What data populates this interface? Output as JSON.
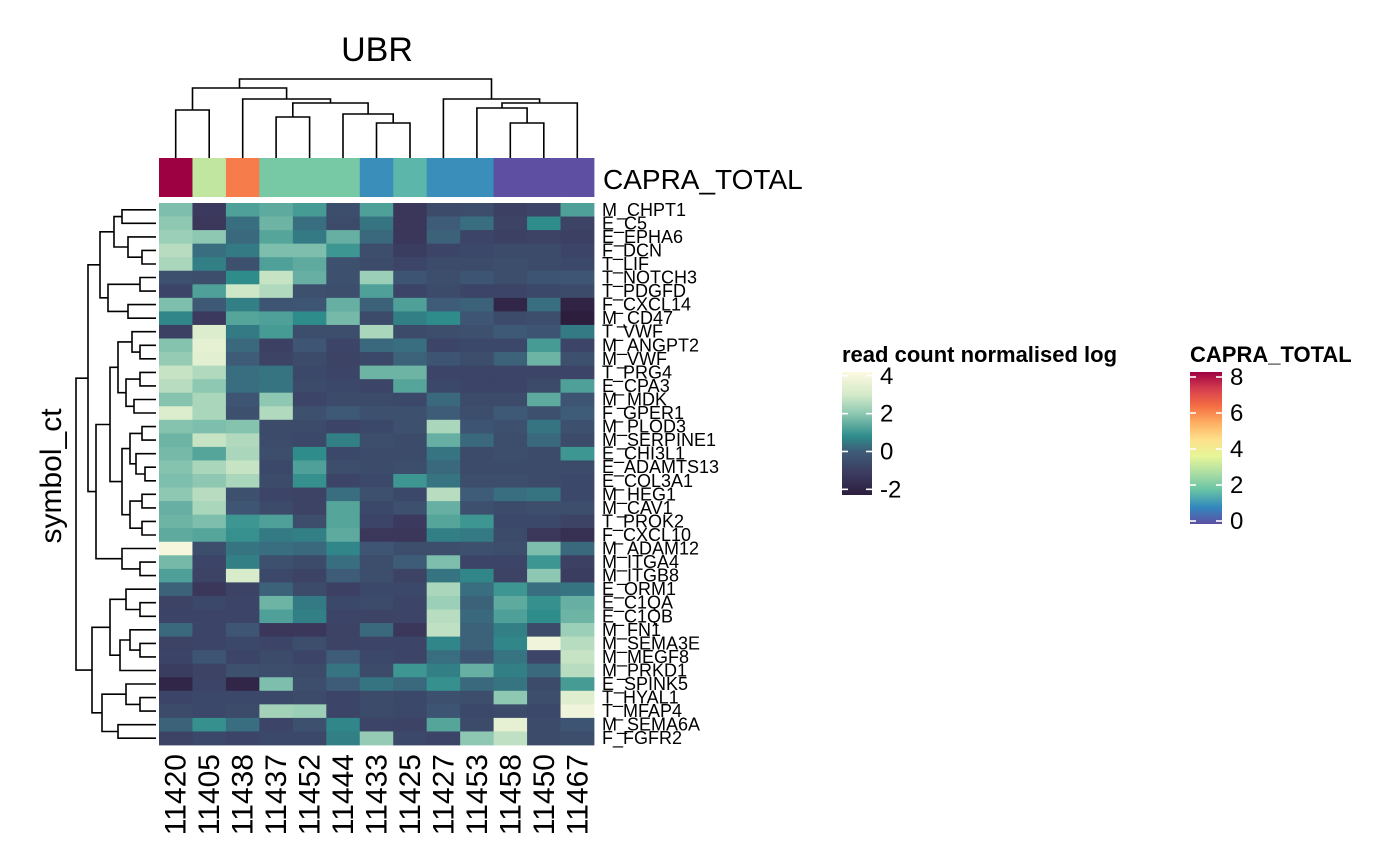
{
  "chart_data": {
    "type": "heatmap",
    "title": "UBR",
    "ylabel": "symbol_ct",
    "columns": [
      "11420",
      "11405",
      "11438",
      "11437",
      "11452",
      "11444",
      "11433",
      "11425",
      "11427",
      "11453",
      "11458",
      "11450",
      "11467"
    ],
    "rows": [
      "M_CHPT1",
      "E_C5",
      "E_EPHA6",
      "F_DCN",
      "T_LIF",
      "T_NOTCH3",
      "T_PDGFD",
      "F_CXCL14",
      "M_CD47",
      "T_VWF",
      "M_ANGPT2",
      "M_VWF",
      "T_PRG4",
      "E_CPA3",
      "M_MDK",
      "F_GPER1",
      "M_PLOD3",
      "M_SERPINE1",
      "E_CHI3L1",
      "E_ADAMTS13",
      "E_COL3A1",
      "M_HEG1",
      "M_CAV1",
      "T_PROK2",
      "F_CXCL10",
      "M_ADAM12",
      "M_ITGA4",
      "M_ITGB8",
      "E_ORM1",
      "E_C1QA",
      "E_C1QB",
      "M_FN1",
      "M_SEMA3E",
      "M_MEGF8",
      "M_PRKD1",
      "E_SPINK5",
      "T_HYAL1",
      "T_MFAP4",
      "M_SEMA6A",
      "F_FGFR2"
    ],
    "values": [
      [
        1.8,
        -1.2,
        1.2,
        1.4,
        1.1,
        -0.5,
        1.2,
        -1.3,
        -0.6,
        -0.5,
        -1.0,
        -0.8,
        1.2
      ],
      [
        2.0,
        -1.3,
        0.3,
        1.6,
        0.3,
        -0.6,
        0.4,
        -1.3,
        0.0,
        0.3,
        -0.9,
        0.8,
        -0.9
      ],
      [
        2.2,
        2.0,
        0.2,
        1.3,
        0.5,
        1.5,
        0.2,
        -1.3,
        0.1,
        -0.8,
        -1.0,
        -0.9,
        -1.0
      ],
      [
        2.6,
        0.3,
        0.5,
        1.8,
        1.8,
        1.0,
        -0.5,
        -1.1,
        -0.8,
        -0.7,
        -0.6,
        -0.6,
        -0.8
      ],
      [
        2.4,
        0.6,
        -0.4,
        1.2,
        1.4,
        -0.4,
        -0.6,
        -0.8,
        -0.6,
        -0.6,
        -0.5,
        -0.6,
        -0.7
      ],
      [
        -0.4,
        -0.5,
        0.8,
        2.8,
        1.5,
        -0.4,
        2.2,
        -0.3,
        -0.5,
        -0.3,
        -0.5,
        -0.3,
        -0.2
      ],
      [
        -0.8,
        1.2,
        2.9,
        2.5,
        -0.4,
        -0.5,
        1.2,
        -0.8,
        -0.6,
        -0.8,
        -0.8,
        -0.7,
        -0.6
      ],
      [
        1.8,
        -0.1,
        0.6,
        -0.3,
        -0.2,
        1.5,
        0.1,
        1.2,
        0.0,
        0.1,
        -2.0,
        0.3,
        -2.1
      ],
      [
        0.7,
        -1.2,
        1.3,
        1.2,
        0.8,
        1.7,
        -0.6,
        0.6,
        0.8,
        -0.2,
        -0.6,
        -0.5,
        -2.3
      ],
      [
        -1.0,
        3.2,
        0.5,
        1.1,
        -0.5,
        -0.5,
        2.4,
        -0.6,
        -0.5,
        -0.4,
        -0.1,
        -0.3,
        0.5
      ],
      [
        1.9,
        3.5,
        0.2,
        -1.0,
        -0.2,
        -0.8,
        0.2,
        0.3,
        -0.8,
        -0.7,
        -0.7,
        1.1,
        -0.8
      ],
      [
        2.1,
        3.4,
        0.0,
        -0.9,
        -0.6,
        -0.9,
        -0.7,
        0.1,
        -0.3,
        -0.5,
        0.1,
        1.6,
        -0.4
      ],
      [
        2.8,
        2.5,
        0.3,
        0.4,
        -0.7,
        -0.8,
        1.6,
        1.6,
        -0.8,
        -0.8,
        -0.8,
        -0.8,
        -0.8
      ],
      [
        2.6,
        2.0,
        0.3,
        0.4,
        -0.6,
        -0.7,
        -0.8,
        1.3,
        -0.7,
        -0.8,
        -0.8,
        -0.6,
        1.2
      ],
      [
        1.9,
        2.4,
        -0.3,
        2.0,
        -0.8,
        -0.6,
        -0.6,
        -0.7,
        0.2,
        -0.6,
        -0.6,
        1.4,
        -0.3
      ],
      [
        3.2,
        2.4,
        -0.4,
        2.5,
        -0.4,
        -0.1,
        -0.4,
        -0.4,
        0.0,
        -0.5,
        -0.1,
        -0.4,
        0.0
      ],
      [
        1.9,
        1.8,
        1.9,
        -0.6,
        -0.6,
        -0.8,
        -0.7,
        -0.4,
        2.4,
        -0.3,
        -0.4,
        0.4,
        -0.4
      ],
      [
        1.6,
        2.8,
        2.5,
        -0.6,
        -0.7,
        0.6,
        -0.5,
        -0.6,
        1.5,
        0.2,
        -0.5,
        0.2,
        -0.6
      ],
      [
        1.7,
        1.3,
        2.4,
        -0.5,
        0.8,
        -0.7,
        -0.6,
        -0.6,
        0.4,
        -0.6,
        -0.5,
        -0.6,
        1.0
      ],
      [
        1.9,
        2.4,
        2.8,
        -0.7,
        1.2,
        -0.5,
        -0.6,
        -0.5,
        0.2,
        -0.6,
        -0.6,
        -0.6,
        -0.6
      ],
      [
        1.8,
        2.0,
        2.4,
        -0.6,
        0.9,
        -0.8,
        -0.7,
        1.0,
        0.4,
        -0.5,
        -0.5,
        -0.6,
        -0.7
      ],
      [
        2.0,
        2.6,
        -0.4,
        -0.8,
        -0.9,
        0.3,
        -0.4,
        -0.7,
        2.6,
        0.0,
        0.3,
        0.4,
        -0.7
      ],
      [
        1.5,
        2.4,
        -0.2,
        -0.6,
        -0.9,
        1.3,
        -0.7,
        -0.4,
        1.5,
        -0.4,
        -0.6,
        -0.5,
        -0.5
      ],
      [
        1.6,
        1.8,
        1.0,
        1.2,
        -0.5,
        1.3,
        -0.8,
        -1.2,
        1.3,
        1.0,
        -0.7,
        -0.7,
        -0.9
      ],
      [
        1.4,
        1.3,
        0.9,
        0.5,
        0.6,
        1.4,
        -1.3,
        -1.3,
        0.6,
        0.5,
        -0.6,
        -1.3,
        -1.6
      ],
      [
        4.0,
        -0.5,
        0.4,
        0.3,
        0.2,
        0.7,
        -0.2,
        -0.5,
        -0.5,
        -0.4,
        -0.5,
        1.8,
        0.2
      ],
      [
        1.7,
        -0.8,
        0.6,
        -0.4,
        -0.6,
        0.3,
        -0.5,
        0.0,
        1.8,
        -0.8,
        -0.8,
        1.0,
        -1.0
      ],
      [
        1.2,
        -0.9,
        3.1,
        -0.7,
        -0.9,
        0.0,
        -0.5,
        -0.9,
        0.4,
        0.7,
        -0.9,
        2.0,
        -1.1
      ],
      [
        0.1,
        -1.3,
        -0.9,
        0.1,
        -0.6,
        -1.0,
        -0.7,
        -0.7,
        2.4,
        0.3,
        1.0,
        0.3,
        0.4
      ],
      [
        -0.9,
        -0.7,
        -0.8,
        1.6,
        0.5,
        -0.7,
        -0.6,
        -0.8,
        2.2,
        0.1,
        1.4,
        0.9,
        1.5
      ],
      [
        -0.8,
        -0.8,
        -0.8,
        1.2,
        0.6,
        -0.8,
        -0.9,
        -0.8,
        2.6,
        0.2,
        1.2,
        0.8,
        1.6
      ],
      [
        0.2,
        -0.8,
        -0.2,
        -1.3,
        -1.3,
        -0.9,
        0.2,
        -1.3,
        2.7,
        0.1,
        0.6,
        -0.6,
        2.2
      ],
      [
        -0.9,
        -0.8,
        -0.7,
        -0.8,
        -0.5,
        -0.9,
        -0.8,
        -0.8,
        0.7,
        0.1,
        0.7,
        3.8,
        2.6
      ],
      [
        -0.8,
        -0.3,
        -0.8,
        -0.6,
        -0.8,
        0.0,
        -0.7,
        -0.8,
        0.3,
        -0.3,
        0.4,
        -0.8,
        2.8
      ],
      [
        -1.1,
        -0.9,
        -0.4,
        -0.5,
        -0.6,
        0.4,
        -0.6,
        1.0,
        0.6,
        1.5,
        0.6,
        0.2,
        2.6
      ],
      [
        -2.0,
        -0.8,
        -2.0,
        1.8,
        -0.5,
        0.0,
        0.4,
        0.2,
        0.9,
        0.2,
        0.4,
        -0.6,
        1.1
      ],
      [
        -0.8,
        -0.7,
        -0.7,
        -0.7,
        -0.6,
        -0.8,
        -0.6,
        -0.7,
        -0.4,
        -0.5,
        2.0,
        -0.5,
        3.3
      ],
      [
        -0.6,
        -0.7,
        -0.6,
        2.3,
        2.2,
        -0.8,
        -0.6,
        -0.7,
        -0.3,
        -0.7,
        -0.6,
        -0.7,
        3.8
      ],
      [
        0.1,
        0.9,
        0.3,
        -0.8,
        -0.4,
        0.7,
        -0.8,
        -0.9,
        1.3,
        -0.6,
        3.5,
        -0.6,
        -0.3
      ],
      [
        -0.9,
        -0.7,
        -0.8,
        -0.7,
        -0.7,
        0.6,
        2.1,
        -0.7,
        -0.8,
        2.0,
        2.7,
        -0.6,
        -0.5
      ]
    ],
    "annotation": {
      "name": "CAPRA_TOTAL",
      "values": [
        8,
        3,
        6,
        2,
        2,
        2,
        1,
        1.6,
        1,
        1,
        0,
        0,
        0
      ]
    },
    "legends": [
      {
        "title": "read count normalised log",
        "ticks": [
          "4",
          "2",
          "0",
          "-2"
        ],
        "tick_values": [
          4,
          2,
          0,
          -2
        ],
        "range": [
          -2.3,
          4.2
        ],
        "colors": [
          "#2d1e3e",
          "#3b3a5e",
          "#3e5c78",
          "#2e8c8b",
          "#8ec8b2",
          "#d4eac9",
          "#fef9e2"
        ],
        "stops": [
          -2.3,
          -1.2,
          0.0,
          0.8,
          2.0,
          3.0,
          4.2
        ]
      },
      {
        "title": "CAPRA_TOTAL",
        "ticks": [
          "8",
          "6",
          "4",
          "2",
          "0"
        ],
        "tick_values": [
          8,
          6,
          4,
          2,
          0
        ],
        "range": [
          0,
          8
        ],
        "colors": [
          "#5e4fa2",
          "#3288bd",
          "#66c2a5",
          "#abdda4",
          "#e6f598",
          "#fee08b",
          "#fdae61",
          "#f46d43",
          "#d53e4f",
          "#9e0142"
        ]
      }
    ],
    "legend_placement": "right"
  }
}
